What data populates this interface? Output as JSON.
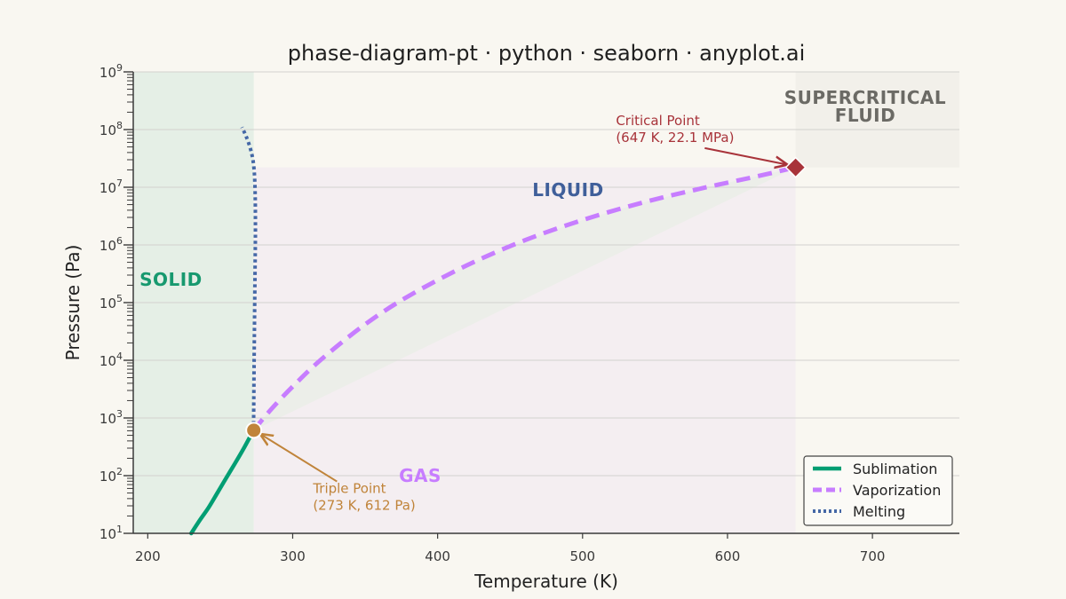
{
  "colors": {
    "background": "#f9f7f1",
    "solid_region": "#e5efe6",
    "liquid_region": "#eceee9",
    "gas_region": "#f4eef1",
    "supercritical_region": "#f2f0ea",
    "sublimation": "#009e73",
    "vaporization": "#c77dff",
    "melting": "#4467a6",
    "triple_point": "#c0843a",
    "critical_point": "#a8333a",
    "solid_label": "#17996f",
    "liquid_label": "#3f5f9a",
    "gas_label": "#c77dff",
    "supercritical_label": "#6b6a65"
  },
  "chart_data": {
    "type": "line",
    "title": "phase-diagram-pt · python · seaborn · anyplot.ai",
    "xlabel": "Temperature (K)",
    "ylabel": "Pressure (Pa)",
    "x_scale": "linear",
    "y_scale": "log",
    "xlim": [
      190,
      760
    ],
    "ylim": [
      10,
      1000000000
    ],
    "grid": "horizontal",
    "legend_position": "lower-right",
    "x_ticks": [
      {
        "value": 200,
        "label": "200"
      },
      {
        "value": 300,
        "label": "300"
      },
      {
        "value": 400,
        "label": "400"
      },
      {
        "value": 500,
        "label": "500"
      },
      {
        "value": 600,
        "label": "600"
      },
      {
        "value": 700,
        "label": "700"
      }
    ],
    "y_ticks": [
      {
        "value": 10,
        "base": "10",
        "exp": "1"
      },
      {
        "value": 100,
        "base": "10",
        "exp": "2"
      },
      {
        "value": 1000,
        "base": "10",
        "exp": "3"
      },
      {
        "value": 10000,
        "base": "10",
        "exp": "4"
      },
      {
        "value": 100000,
        "base": "10",
        "exp": "5"
      },
      {
        "value": 1000000,
        "base": "10",
        "exp": "6"
      },
      {
        "value": 10000000,
        "base": "10",
        "exp": "7"
      },
      {
        "value": 100000000,
        "base": "10",
        "exp": "8"
      },
      {
        "value": 1000000000,
        "base": "10",
        "exp": "9"
      }
    ],
    "regions": [
      {
        "name": "SOLID",
        "label_at": [
          216,
          250000
        ]
      },
      {
        "name": "LIQUID",
        "label_at": [
          490,
          9000000
        ]
      },
      {
        "name": "GAS",
        "label_at": [
          388,
          100
        ]
      },
      {
        "name": "SUPERCRITICAL",
        "line2": "FLUID",
        "label_at": [
          695,
          170000000
        ]
      }
    ],
    "series": [
      {
        "name": "Sublimation",
        "style": "solid",
        "x": [
          230,
          236,
          242,
          248,
          254,
          260,
          266,
          273
        ],
        "y": [
          10,
          17,
          28,
          50,
          90,
          160,
          290,
          612
        ]
      },
      {
        "name": "Vaporization",
        "style": "dashed",
        "x": [
          273,
          285,
          300,
          320,
          350,
          380,
          420,
          460,
          500,
          540,
          580,
          620,
          647
        ],
        "y": [
          612,
          1400,
          3500,
          10500,
          42000,
          130000,
          440000,
          1200000,
          2700000,
          5300000,
          9300000,
          15400000,
          22100000
        ]
      },
      {
        "name": "Melting",
        "style": "dotted",
        "x": [
          273,
          273.4,
          274,
          274.3,
          274,
          273,
          271,
          268,
          265
        ],
        "y": [
          612,
          10000,
          300000,
          2000000,
          10000000,
          25000000,
          45000000,
          75000000,
          110000000
        ]
      }
    ],
    "points": [
      {
        "name": "Triple Point",
        "x": 273.16,
        "y": 612
      },
      {
        "name": "Critical Point",
        "x": 647,
        "y": 22100000
      }
    ],
    "annotations": [
      {
        "line1": "Triple Point",
        "line2": "(273 K, 612 Pa)",
        "text_at": [
          314,
          50
        ],
        "arrow_to": [
          273.16,
          612
        ]
      },
      {
        "line1": "Critical Point",
        "line2": "(647 K, 22.1 MPa)",
        "text_at": [
          523,
          120000000
        ],
        "arrow_to": [
          647,
          22100000
        ]
      }
    ]
  }
}
